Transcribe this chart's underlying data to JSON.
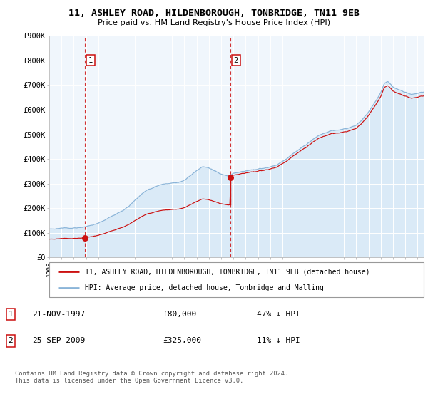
{
  "title": "11, ASHLEY ROAD, HILDENBOROUGH, TONBRIDGE, TN11 9EB",
  "subtitle": "Price paid vs. HM Land Registry's House Price Index (HPI)",
  "hpi_color": "#8ab4d8",
  "price_color": "#cc1111",
  "shade_color": "#daeaf7",
  "plot_bg": "#f0f6fc",
  "grid_color": "#ffffff",
  "ylim": [
    0,
    900000
  ],
  "xlim_start": 1995.0,
  "xlim_end": 2025.5,
  "sale1_date": 1997.896,
  "sale1_price": 80000,
  "sale1_label": "1",
  "sale2_date": 2009.729,
  "sale2_price": 325000,
  "sale2_label": "2",
  "legend_line1": "11, ASHLEY ROAD, HILDENBOROUGH, TONBRIDGE, TN11 9EB (detached house)",
  "legend_line2": "HPI: Average price, detached house, Tonbridge and Malling",
  "table_row1_date": "21-NOV-1997",
  "table_row1_price": "£80,000",
  "table_row1_hpi": "47% ↓ HPI",
  "table_row2_date": "25-SEP-2009",
  "table_row2_price": "£325,000",
  "table_row2_hpi": "11% ↓ HPI",
  "footer": "Contains HM Land Registry data © Crown copyright and database right 2024.\nThis data is licensed under the Open Government Licence v3.0.",
  "yticks": [
    0,
    100000,
    200000,
    300000,
    400000,
    500000,
    600000,
    700000,
    800000,
    900000
  ],
  "ytick_labels": [
    "£0",
    "£100K",
    "£200K",
    "£300K",
    "£400K",
    "£500K",
    "£600K",
    "£700K",
    "£800K",
    "£900K"
  ]
}
